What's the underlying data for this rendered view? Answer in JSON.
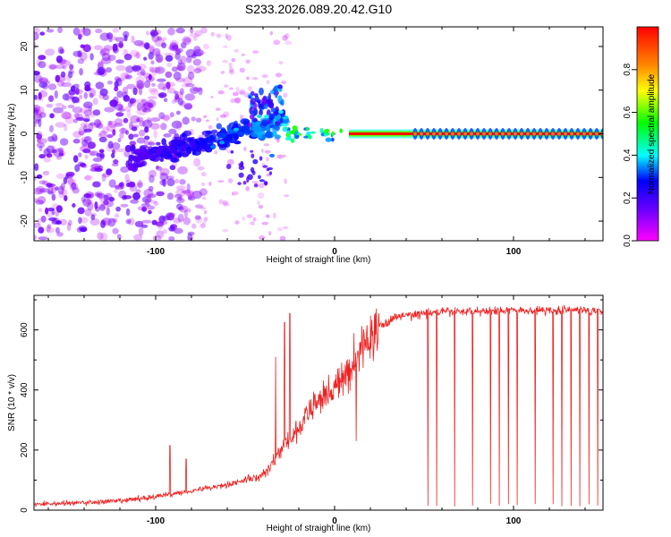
{
  "figure": {
    "title": "S233.2026.089.20.42.G10"
  },
  "chart_data": [
    {
      "type": "heatmap",
      "title": "S233.2026.089.20.42.G10",
      "xlabel": "Height of straight line (km)",
      "ylabel": "Frequency (Hz)",
      "xlim": [
        -168,
        150
      ],
      "ylim": [
        -24.5,
        24.5
      ],
      "xticks": [
        {
          "value": -100,
          "label": "-100"
        },
        {
          "value": 0,
          "label": "0"
        },
        {
          "value": 100,
          "label": "100"
        }
      ],
      "yticks": [
        {
          "value": -20,
          "label": "-20"
        },
        {
          "value": -10,
          "label": "-10"
        },
        {
          "value": 0,
          "label": "0"
        },
        {
          "value": 10,
          "label": "10"
        },
        {
          "value": 20,
          "label": "20"
        }
      ],
      "colorbar": {
        "label": "Normalized spectral amplitude",
        "range": [
          0,
          1
        ],
        "ticks": [
          {
            "value": 0.0,
            "label": "0.0"
          },
          {
            "value": 0.2,
            "label": "0.2"
          },
          {
            "value": 0.4,
            "label": "0.4"
          },
          {
            "value": 0.6,
            "label": "0.6"
          },
          {
            "value": 0.8,
            "label": "0.8"
          }
        ]
      },
      "features": {
        "carrier_frequency_hz": 0,
        "carrier_onset_km": -27,
        "strong_carrier_onset_km": 8,
        "pulsed_segment_start_km": 45,
        "pulse_spacing_km": 3.5,
        "noise_region_km": [
          -168,
          -100
        ],
        "scintillation_region_km": [
          -115,
          -27
        ]
      }
    },
    {
      "type": "line",
      "title": "",
      "xlabel": "Height of straight line (km)",
      "ylabel": "SNR (10 * v/v)",
      "xlim": [
        -168,
        150
      ],
      "ylim": [
        0,
        715
      ],
      "color": "#ee2222",
      "xticks": [
        {
          "value": -100,
          "label": "-100"
        },
        {
          "value": 0,
          "label": "0"
        },
        {
          "value": 100,
          "label": "100"
        }
      ],
      "yticks": [
        {
          "value": 0,
          "label": "0"
        },
        {
          "value": 200,
          "label": "200"
        },
        {
          "value": 400,
          "label": "400"
        },
        {
          "value": 600,
          "label": "600"
        }
      ],
      "trend": [
        {
          "x": -168,
          "y": 20
        },
        {
          "x": -140,
          "y": 25
        },
        {
          "x": -120,
          "y": 30
        },
        {
          "x": -100,
          "y": 45
        },
        {
          "x": -80,
          "y": 65
        },
        {
          "x": -60,
          "y": 85
        },
        {
          "x": -40,
          "y": 115
        },
        {
          "x": -30,
          "y": 200
        },
        {
          "x": -22,
          "y": 250
        },
        {
          "x": -15,
          "y": 320
        },
        {
          "x": -5,
          "y": 390
        },
        {
          "x": 5,
          "y": 430
        },
        {
          "x": 15,
          "y": 540
        },
        {
          "x": 25,
          "y": 610
        },
        {
          "x": 35,
          "y": 645
        },
        {
          "x": 60,
          "y": 660
        },
        {
          "x": 100,
          "y": 665
        },
        {
          "x": 150,
          "y": 665
        }
      ],
      "spikes": [
        {
          "x": -92,
          "y": 215
        },
        {
          "x": -83,
          "y": 170
        },
        {
          "x": -33,
          "y": 510
        },
        {
          "x": -28,
          "y": 625
        },
        {
          "x": -25,
          "y": 655
        },
        {
          "x": 12,
          "y": 230
        }
      ],
      "dropouts": {
        "start_km": 52,
        "spacing_km": 5,
        "min_snr": 12
      }
    }
  ]
}
